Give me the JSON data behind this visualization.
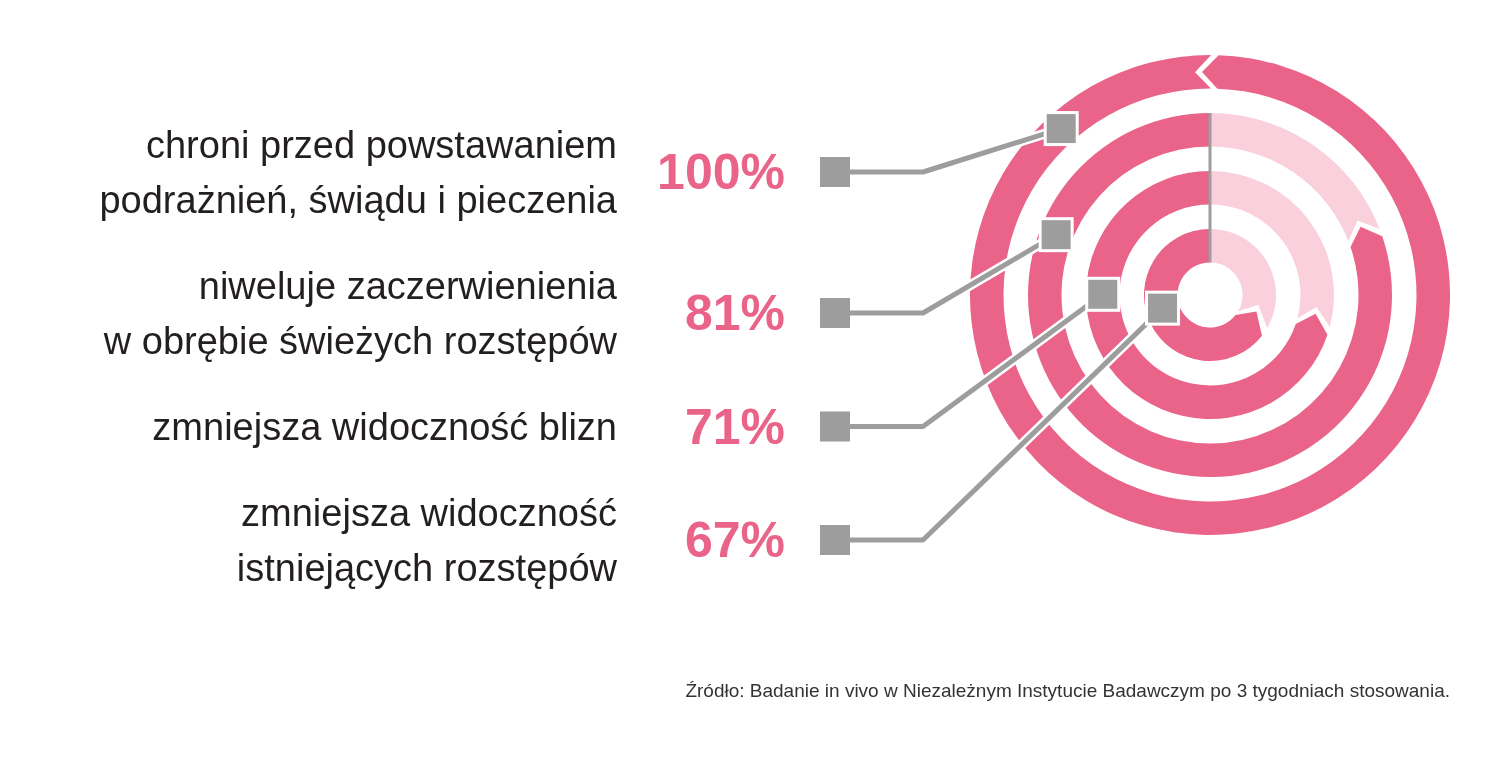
{
  "chart_data": {
    "type": "other",
    "categories": [
      "chroni przed powstawaniem\npodrażnień, świądu i pieczenia",
      "niweluje zaczerwienienia\nw obrębie świeżych rozstępów",
      "zmniejsza widoczność blizn",
      "zmniejsza widoczność\nistniejących rozstępów"
    ],
    "values": [
      100,
      81,
      71,
      67
    ],
    "value_labels": [
      "100%",
      "81%",
      "71%",
      "67%"
    ],
    "color": "#ea6389",
    "annotations": [
      "Źródło: Badanie in vivo w Niezależnym Instytucie Badawczym po 3 tygodniach stosowania."
    ]
  }
}
